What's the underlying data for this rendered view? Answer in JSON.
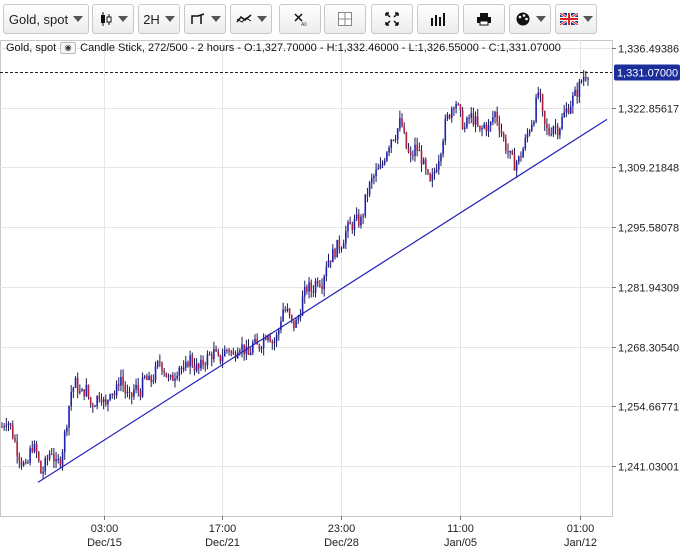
{
  "toolbar": {
    "symbol": "Gold, spot",
    "timeframe": "2H",
    "icons": [
      "candlestick-type-icon",
      "timeframe",
      "draw-tools-icon",
      "indicators-icon",
      "clear-drawings-icon",
      "layout-icon",
      "fullscreen-icon",
      "volume-icon",
      "print-icon",
      "palette-icon",
      "language-flag-icon"
    ]
  },
  "info": {
    "symbol": "Gold, spot",
    "details": "Candle Stick, 272/500 - 2 hours - O:1,327.70000 - H:1,332.46000 - L:1,326.55000 - C:1,331.07000"
  },
  "price_label": "1,331.07000",
  "chart_data": {
    "type": "candlestick",
    "y_ticks": [
      "1,336.49386",
      "1,322.85617",
      "1,309.21848",
      "1,295.58078",
      "1,281.94309",
      "1,268.30540",
      "1,254.66771",
      "1,241.03001"
    ],
    "y_tick_values": [
      1336.49386,
      1322.85617,
      1309.21848,
      1295.58078,
      1281.94309,
      1268.3054,
      1254.66771,
      1241.03001
    ],
    "x_ticks": [
      {
        "time": "03:00",
        "date": "Dec/15"
      },
      {
        "time": "17:00",
        "date": "Dec/21"
      },
      {
        "time": "23:00",
        "date": "Dec/28"
      },
      {
        "time": "11:00",
        "date": "Jan/05"
      },
      {
        "time": "01:00",
        "date": "Jan/12"
      }
    ],
    "last_close": 1331.07,
    "ohlc_last": {
      "open": 1327.7,
      "high": 1332.46,
      "low": 1326.55,
      "close": 1331.07
    },
    "trendline": {
      "from": 1237.3,
      "to": 1320.2
    },
    "series_path": [
      1250,
      1252,
      1249,
      1245,
      1242,
      1240,
      1246,
      1244,
      1239,
      1242,
      1245,
      1241,
      1243,
      1250,
      1258,
      1260,
      1257,
      1259,
      1255,
      1256,
      1258,
      1254,
      1259,
      1257,
      1262,
      1258,
      1256,
      1259,
      1258,
      1261,
      1260,
      1262,
      1265,
      1263,
      1260,
      1262,
      1264,
      1262,
      1266,
      1264,
      1263,
      1265,
      1266,
      1267,
      1265,
      1267,
      1268,
      1266,
      1269,
      1268,
      1266,
      1269,
      1268,
      1270,
      1272,
      1269,
      1271,
      1277,
      1276,
      1273,
      1274,
      1279,
      1282,
      1281,
      1284,
      1283,
      1288,
      1289,
      1291,
      1292,
      1295,
      1296,
      1297,
      1297,
      1303,
      1306,
      1308,
      1309,
      1313,
      1316,
      1317,
      1320,
      1314,
      1311,
      1314,
      1312,
      1308,
      1305,
      1309,
      1313,
      1319,
      1322,
      1325,
      1321,
      1318,
      1321,
      1320,
      1317,
      1319,
      1318,
      1322,
      1319,
      1315,
      1312,
      1310,
      1311,
      1314,
      1318,
      1321,
      1327,
      1319,
      1317,
      1319,
      1318,
      1321,
      1323,
      1325,
      1327,
      1330,
      1331
    ]
  }
}
